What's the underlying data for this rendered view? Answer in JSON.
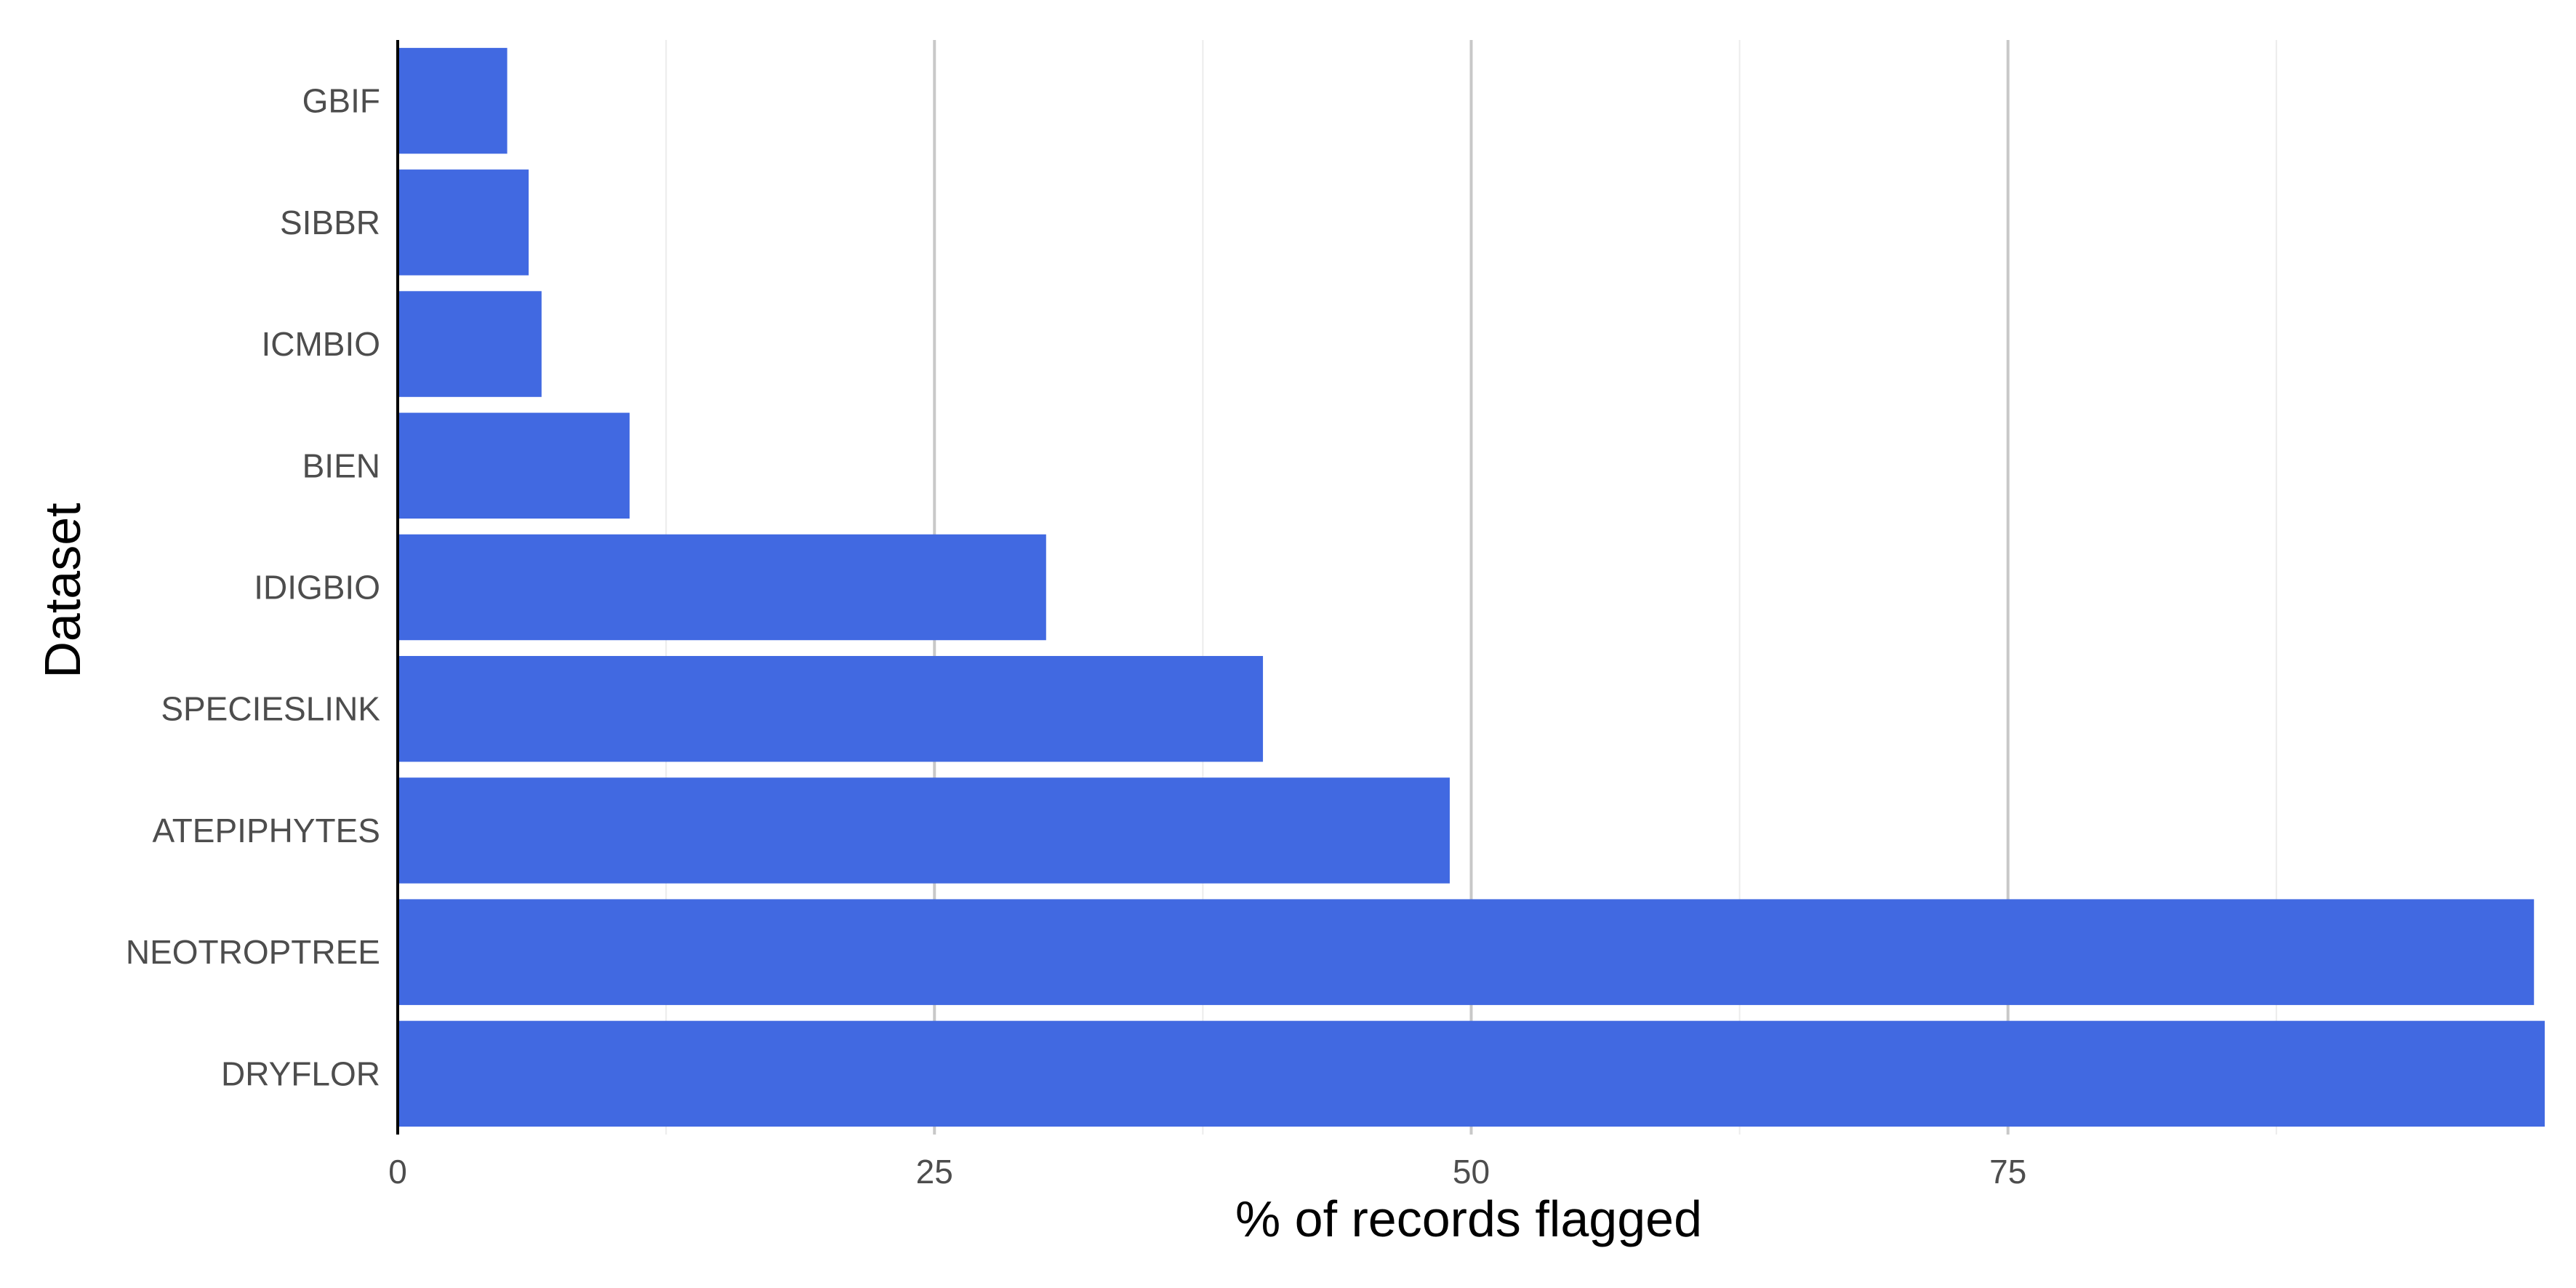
{
  "chart_data": {
    "type": "bar",
    "orientation": "horizontal",
    "xlabel": "% of records flagged",
    "ylabel": "Dataset",
    "categories": [
      "GBIF",
      "SIBBR",
      "ICMBIO",
      "BIEN",
      "IDIGBIO",
      "SPECIESLINK",
      "ATEPIPHYTES",
      "NEOTROPTREE",
      "DRYFLOR"
    ],
    "values": [
      5.1,
      6.1,
      6.7,
      10.8,
      30.2,
      40.3,
      49.0,
      99.5,
      100.0
    ],
    "xlim": [
      0,
      100
    ],
    "x_ticks": [
      "0",
      "25",
      "50",
      "75"
    ],
    "x_tick_values": [
      0,
      25,
      50,
      75
    ],
    "grid": true,
    "legend": "none",
    "bar_color": "#4169E1",
    "grid_major_color": "#c8c8c8",
    "grid_minor_color": "#ececec",
    "axis_color": "#000000"
  }
}
